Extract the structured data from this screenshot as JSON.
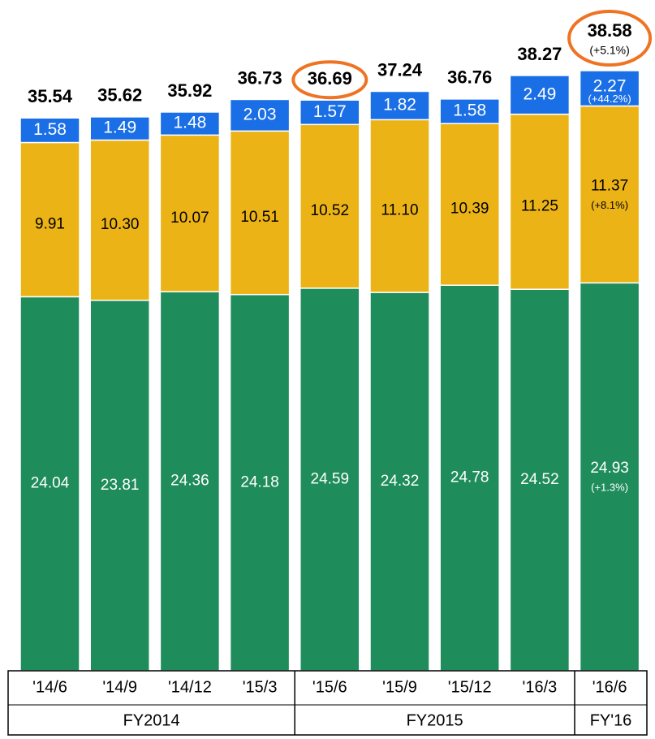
{
  "chart_data": {
    "type": "stacked_bar",
    "categories": [
      "'14/6",
      "'14/9",
      "'14/12",
      "'15/3",
      "'15/6",
      "'15/9",
      "'15/12",
      "'16/3",
      "'16/6"
    ],
    "series": [
      {
        "color": "#1f8c5b",
        "label_color": "#ffffff",
        "values": [
          24.04,
          23.81,
          24.36,
          24.18,
          24.59,
          24.32,
          24.78,
          24.52,
          24.93
        ],
        "change": "(+1.3%)"
      },
      {
        "color": "#ecb317",
        "label_color": "#000000",
        "values": [
          9.91,
          10.3,
          10.07,
          10.51,
          10.52,
          11.1,
          10.39,
          11.25,
          11.37
        ],
        "value_labels": [
          "9.91",
          "10.30",
          "10.07",
          "10.51",
          "10.52",
          "11.10",
          "10.39",
          "11.25",
          "11.37"
        ],
        "change": "(+8.1%)"
      },
      {
        "color": "#1a6fe6",
        "label_color": "#ffffff",
        "values": [
          1.58,
          1.49,
          1.48,
          2.03,
          1.57,
          1.82,
          1.58,
          2.49,
          2.27
        ],
        "change": "(+44.2%)"
      }
    ],
    "totals": [
      35.54,
      35.62,
      35.92,
      36.73,
      36.69,
      37.24,
      36.76,
      38.27,
      38.58
    ],
    "total_change": "(+5.1%)",
    "highlight": [
      4,
      8
    ],
    "highlight_color": "#ee7423",
    "groups": [
      {
        "label": "FY2014",
        "count": 4
      },
      {
        "label": "FY2015",
        "count": 4
      },
      {
        "label": "FY'16",
        "count": 1
      }
    ]
  }
}
